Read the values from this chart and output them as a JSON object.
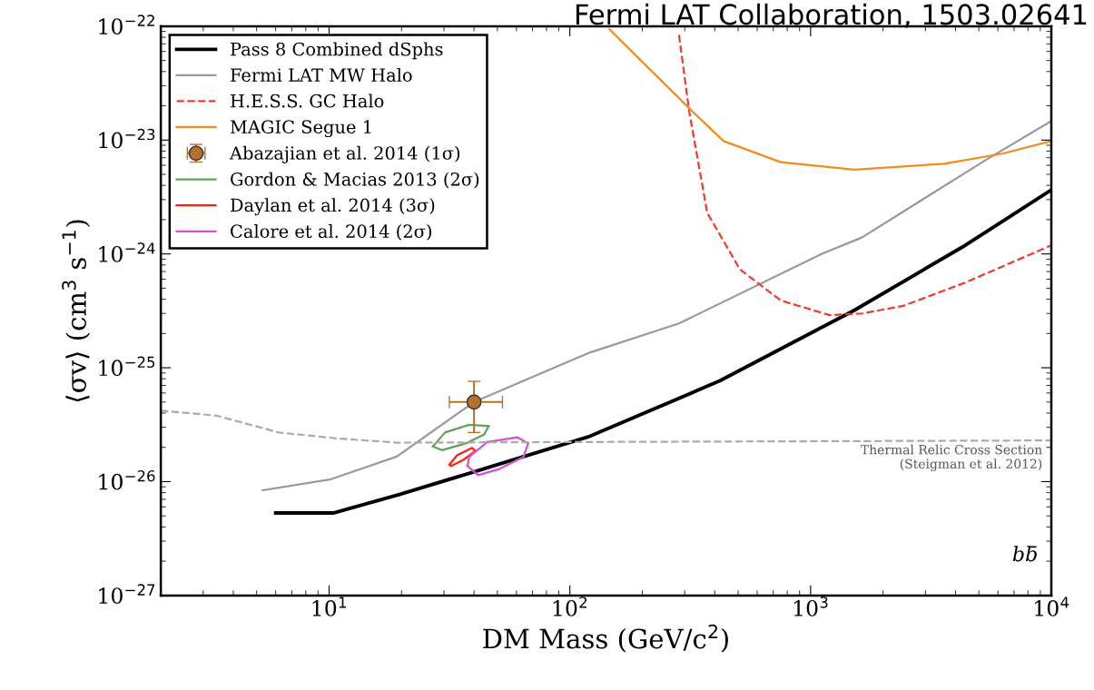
{
  "chart_data": {
    "type": "line",
    "title": "Fermi LAT Collaboration, 1503.02641",
    "xlabel": "DM Mass (GeV/c$^{2}$)",
    "ylabel": "⟨σv⟩ (cm$^{3}$ s$^{−1}$)",
    "log": "xy",
    "xlim": [
      2,
      10000
    ],
    "ylim": [
      1e-27,
      1e-22
    ],
    "xticks": [
      {
        "value": 10,
        "label": "10$^{1}$"
      },
      {
        "value": 100,
        "label": "10$^{2}$"
      },
      {
        "value": 1000,
        "label": "10$^{3}$"
      },
      {
        "value": 10000,
        "label": "10$^{4}$"
      }
    ],
    "yticks": [
      {
        "value": 1e-27,
        "label": "10$^{−27}$"
      },
      {
        "value": 1e-26,
        "label": "10$^{−26}$"
      },
      {
        "value": 1e-25,
        "label": "10$^{−25}$"
      },
      {
        "value": 1e-24,
        "label": "10$^{−24}$"
      },
      {
        "value": 1e-23,
        "label": "10$^{−23}$"
      },
      {
        "value": 1e-22,
        "label": "10$^{−22}$"
      }
    ],
    "grid": false,
    "legend": "top left",
    "series": [
      {
        "name": "Pass 8 Combined dSphs",
        "color": "#000000",
        "line_style": "solid",
        "x": [
          6,
          10.4,
          19.6,
          39,
          121,
          421,
          1520,
          4390,
          10000
        ],
        "values": [
          5.3e-27,
          5.3e-27,
          7.7e-27,
          1.2e-26,
          2.5e-26,
          7.7e-26,
          3.2e-25,
          1.19e-24,
          3.65e-24
        ]
      },
      {
        "name": "Fermi LAT MW Halo",
        "color": "#999999",
        "line_style": "solid",
        "x": [
          5.3,
          10.2,
          19.1,
          40,
          121,
          284,
          1110,
          1640,
          5350,
          10000
        ],
        "values": [
          8.4e-27,
          1.05e-26,
          1.66e-26,
          5e-26,
          1.36e-25,
          2.45e-25,
          1e-24,
          1.4e-24,
          6.7e-24,
          1.47e-23
        ]
      },
      {
        "name": "H.E.S.S. GC Halo",
        "color": "#ee3b2e",
        "line_style": "dashed",
        "x": [
          284,
          313,
          372,
          509,
          752,
          1200,
          1640,
          2430,
          4390,
          10000
        ],
        "values": [
          8.4e-23,
          1.8e-23,
          2.3e-24,
          7.3e-25,
          3.9e-25,
          2.9e-25,
          3e-25,
          3.5e-25,
          5.6e-25,
          1.19e-24
        ]
      },
      {
        "name": "MAGIC Segue 1",
        "color": "#f28c1c",
        "line_style": "solid",
        "x": [
          146,
          308,
          435,
          752,
          1520,
          3590,
          6250,
          10000
        ],
        "values": [
          9.4e-23,
          1.97e-23,
          9.8e-24,
          6.4e-24,
          5.5e-24,
          6.2e-24,
          7.6e-24,
          9.8e-24
        ]
      },
      {
        "name": "Abazajian et al. 2014 (1σ)",
        "type": "scatter",
        "color": "#b8702e",
        "marker": "circle",
        "x": [
          40
        ],
        "values": [
          5e-26
        ],
        "errors": [
          [
            2.7e-26,
            7.6e-26
          ]
        ],
        "xerrors": [
          [
            31.6,
            52.5
          ]
        ]
      },
      {
        "name": "Gordon & Macias 2013 (2σ)",
        "color": "#5fa05a",
        "line_style": "solid",
        "x": [
          27.0,
          30.3,
          38.2,
          46.0
        ],
        "values": [
          2.04e-26,
          2.7e-26,
          3.16e-26,
          3.07e-26
        ]
      },
      {
        "color": "#5fa05a",
        "line_style": "solid",
        "x": [
          27.0,
          29.4,
          37.1,
          44.1,
          46.0
        ],
        "values": [
          2.04e-26,
          1.89e-26,
          2.17e-26,
          2.6e-26,
          3.07e-26
        ]
      },
      {
        "name": "Daylan et al. 2014 (3σ)",
        "color": "#ff1f10",
        "line_style": "solid",
        "x": [
          31.6,
          34.0,
          39.3,
          40.4
        ],
        "values": [
          1.41e-26,
          1.7e-26,
          1.98e-26,
          1.86e-26
        ]
      },
      {
        "color": "#ff1f10",
        "line_style": "solid",
        "x": [
          31.6,
          32.1,
          36.1,
          40.4
        ],
        "values": [
          1.41e-26,
          1.37e-26,
          1.55e-26,
          1.86e-26
        ]
      },
      {
        "name": "Calore et al. 2014 (2σ)",
        "color": "#d64fd6",
        "line_style": "solid",
        "x": [
          37.6,
          38.2,
          45.4,
          60.7,
          67.1
        ],
        "values": [
          1.37e-26,
          1.65e-26,
          2.23e-26,
          2.45e-26,
          2.17e-26
        ]
      },
      {
        "color": "#d64fd6",
        "line_style": "solid",
        "x": [
          37.6,
          41.6,
          50.9,
          64.3,
          67.1
        ],
        "values": [
          1.37e-26,
          1.14e-26,
          1.29e-26,
          1.65e-26,
          2.17e-26
        ]
      },
      {
        "color": "#aaaaaa",
        "line_style": "dashed",
        "x": [
          2,
          3.4,
          6.2,
          10.7,
          19.1,
          10000
        ],
        "values": [
          4.2e-26,
          3.8e-26,
          2.7e-26,
          2.4e-26,
          2.2e-26,
          2.3e-26
        ]
      }
    ],
    "annotations": [
      "Thermal Relic Cross Section\n(Steigman et al. 2012)",
      "bb̄"
    ]
  }
}
